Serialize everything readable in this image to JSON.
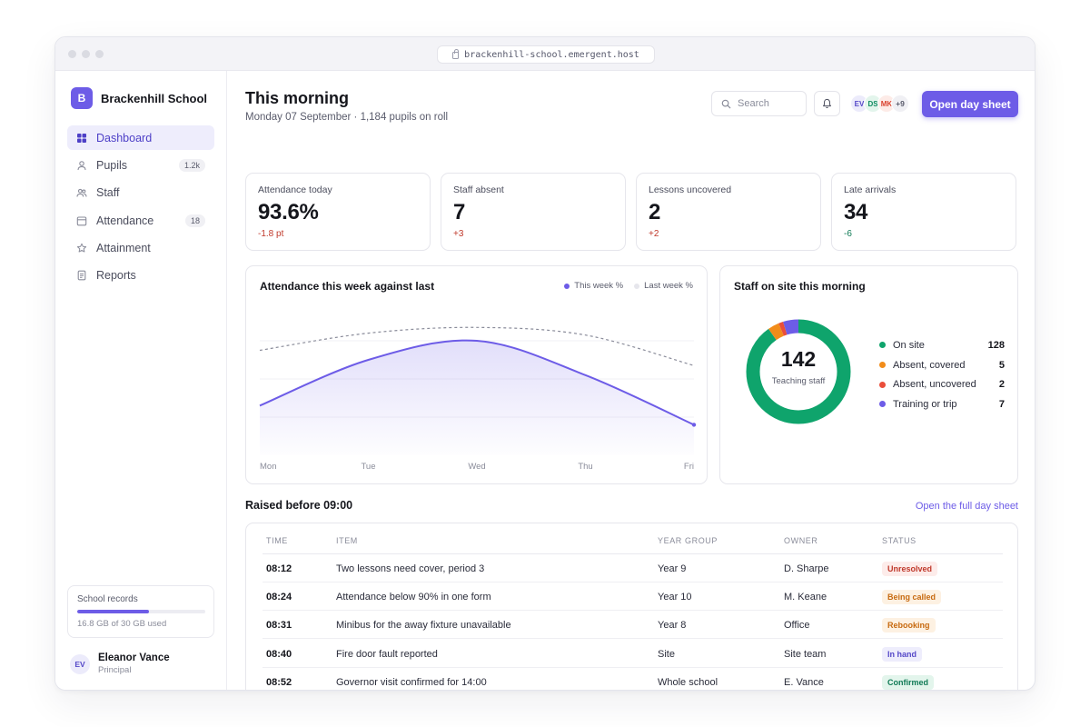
{
  "browser": {
    "url": "brackenhill-school.emergent.host"
  },
  "sidebar": {
    "brand_initial": "B",
    "brand_name": "Brackenhill School",
    "nav": [
      {
        "label": "Dashboard",
        "icon": "grid-icon",
        "active": true,
        "badge": ""
      },
      {
        "label": "Pupils",
        "icon": "person-icon",
        "active": false,
        "badge": "1.2k"
      },
      {
        "label": "Staff",
        "icon": "people-icon",
        "active": false,
        "badge": ""
      },
      {
        "label": "Attendance",
        "icon": "calendar-icon",
        "active": false,
        "badge": "18"
      },
      {
        "label": "Attainment",
        "icon": "star-icon",
        "active": false,
        "badge": ""
      },
      {
        "label": "Reports",
        "icon": "document-icon",
        "active": false,
        "badge": ""
      }
    ],
    "storage": {
      "title": "School records",
      "used_text": "16.8 GB of 30 GB used",
      "fraction": 0.56
    },
    "user": {
      "initials": "EV",
      "name": "Eleanor Vance",
      "role": "Principal"
    }
  },
  "header": {
    "title": "This morning",
    "subtitle": "Monday 07 September · 1,184 pupils on roll",
    "search_placeholder": "Search",
    "avatars": [
      {
        "initials": "EV",
        "color": "#5548c8",
        "bg": "#ecebfb"
      },
      {
        "initials": "DS",
        "color": "#0f8a5f",
        "bg": "#e3f5ec"
      },
      {
        "initials": "MK",
        "color": "#d9432f",
        "bg": "#fdebe7"
      }
    ],
    "avatars_more": "+9",
    "primary_button": "Open day sheet"
  },
  "kpis": [
    {
      "label": "Attendance today",
      "value": "93.6%",
      "delta": "-1.8 pt",
      "delta_color": "#c0392b"
    },
    {
      "label": "Staff absent",
      "value": "7",
      "delta": "+3",
      "delta_color": "#c0392b"
    },
    {
      "label": "Lessons uncovered",
      "value": "2",
      "delta": "+2",
      "delta_color": "#c0392b"
    },
    {
      "label": "Late arrivals",
      "value": "34",
      "delta": "-6",
      "delta_color": "#0f7a55"
    }
  ],
  "attendance_card": {
    "title": "Attendance this week against last",
    "legend": [
      {
        "label": "This week %",
        "color": "#6d5ce7"
      },
      {
        "label": "Last week %",
        "color": "#e6e6ec"
      }
    ]
  },
  "chart_data": {
    "type": "area",
    "categories": [
      "Mon",
      "Tue",
      "Wed",
      "Thu",
      "Fri"
    ],
    "series": [
      {
        "name": "This week %",
        "values": [
          93.6,
          96.0,
          97.0,
          95.2,
          92.6
        ],
        "color": "#6d5ce7",
        "style": "area"
      },
      {
        "name": "Last week %",
        "values": [
          96.5,
          97.4,
          97.7,
          97.3,
          95.7
        ],
        "color": "#8a8c9a",
        "style": "dashed"
      }
    ],
    "ylim": [
      91,
      99
    ],
    "grid": "horizontal"
  },
  "staff_card": {
    "title": "Staff on site this morning",
    "total": "142",
    "total_label": "Teaching staff",
    "segments": [
      {
        "label": "On site",
        "value": 128,
        "color": "#0fa46c"
      },
      {
        "label": "Absent, covered",
        "value": 5,
        "color": "#f28c1a"
      },
      {
        "label": "Absent, uncovered",
        "value": 2,
        "color": "#ea4e3a"
      },
      {
        "label": "Training or trip",
        "value": 7,
        "color": "#6d5ce7"
      }
    ]
  },
  "raised": {
    "title": "Raised before 09:00",
    "link": "Open the full day sheet",
    "columns": [
      "TIME",
      "ITEM",
      "YEAR GROUP",
      "OWNER",
      "STATUS"
    ],
    "rows": [
      {
        "time": "08:12",
        "item": "Two lessons need cover, period 3",
        "year": "Year 9",
        "owner": "D. Sharpe",
        "status": "Unresolved",
        "status_fg": "#c0392b",
        "status_bg": "#fdecea"
      },
      {
        "time": "08:24",
        "item": "Attendance below 90% in one form",
        "year": "Year 10",
        "owner": "M. Keane",
        "status": "Being called",
        "status_fg": "#c76a10",
        "status_bg": "#fdf1e2"
      },
      {
        "time": "08:31",
        "item": "Minibus for the away fixture unavailable",
        "year": "Year 8",
        "owner": "Office",
        "status": "Rebooking",
        "status_fg": "#c76a10",
        "status_bg": "#fdf1e2"
      },
      {
        "time": "08:40",
        "item": "Fire door fault reported",
        "year": "Site",
        "owner": "Site team",
        "status": "In hand",
        "status_fg": "#5548c8",
        "status_bg": "#eeedfc"
      },
      {
        "time": "08:52",
        "item": "Governor visit confirmed for 14:00",
        "year": "Whole school",
        "owner": "E. Vance",
        "status": "Confirmed",
        "status_fg": "#0f7a55",
        "status_bg": "#e3f5ec"
      }
    ]
  }
}
